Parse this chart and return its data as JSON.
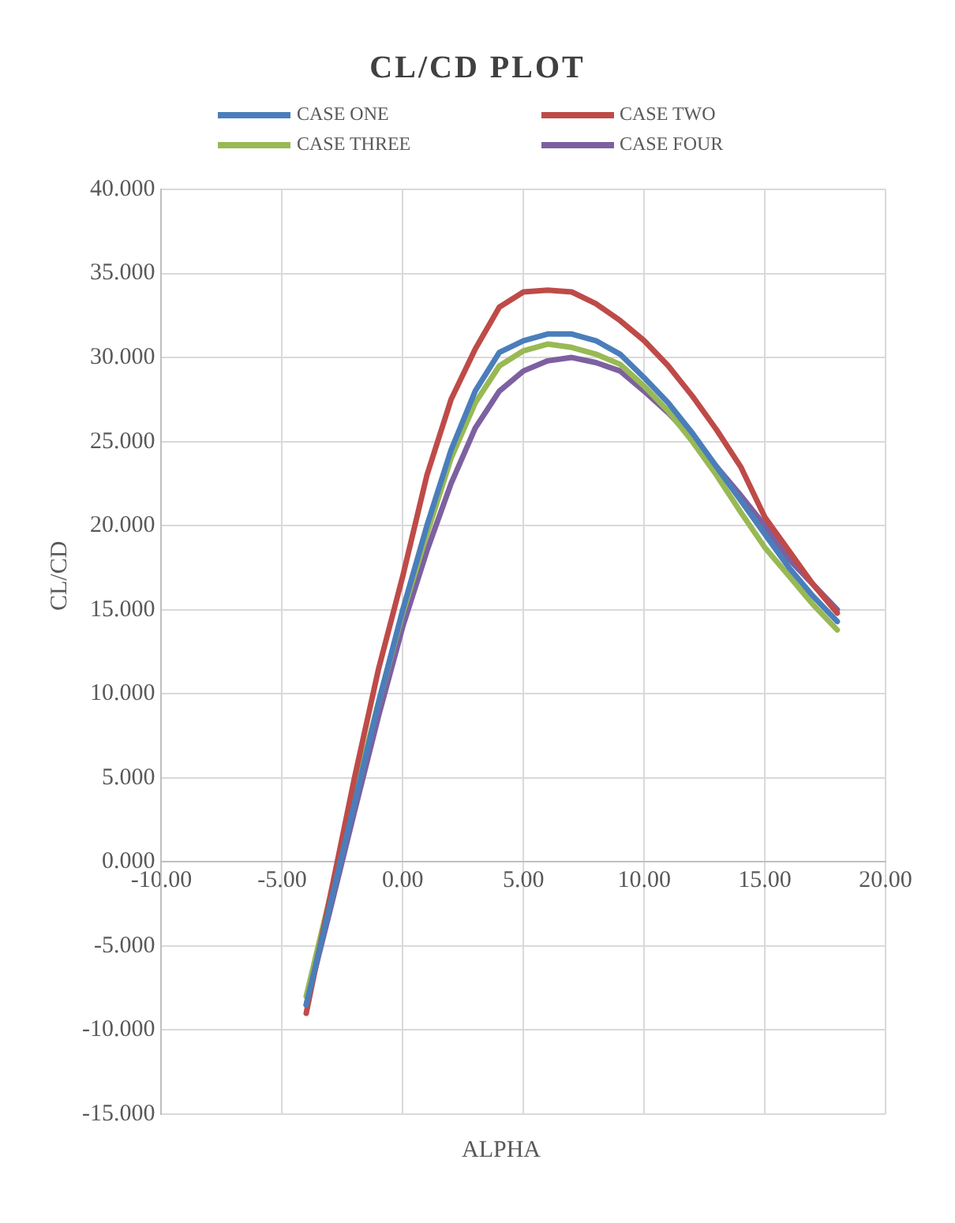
{
  "chart_data": {
    "type": "line",
    "title": "CL/CD PLOT",
    "xlabel": "ALPHA",
    "ylabel": "CL/CD",
    "x": [
      -4,
      -3,
      -2,
      -1,
      0,
      1,
      2,
      3,
      4,
      5,
      6,
      7,
      8,
      9,
      10,
      11,
      12,
      13,
      14,
      15,
      16,
      17,
      18
    ],
    "series": [
      {
        "name": "CASE ONE",
        "color": "#4a7ebb",
        "values": [
          -8.5,
          -2.5,
          3.5,
          9.5,
          15,
          20,
          24.5,
          28,
          30.3,
          31,
          31.4,
          31.4,
          31,
          30.2,
          28.8,
          27.3,
          25.5,
          23.5,
          21.5,
          19.5,
          17.5,
          15.8,
          14.3
        ]
      },
      {
        "name": "CASE TWO",
        "color": "#be4b48",
        "values": [
          -9,
          -2,
          5,
          11.5,
          17,
          23,
          27.5,
          30.5,
          33,
          33.9,
          34,
          33.9,
          33.2,
          32.2,
          31,
          29.5,
          27.7,
          25.7,
          23.5,
          20.5,
          18.5,
          16.5,
          14.8
        ]
      },
      {
        "name": "CASE THREE",
        "color": "#98b954",
        "values": [
          -8,
          -2,
          4,
          9.5,
          14.8,
          19.5,
          24,
          27.3,
          29.5,
          30.4,
          30.8,
          30.6,
          30.2,
          29.6,
          28.3,
          26.8,
          25,
          23,
          20.8,
          18.7,
          17,
          15.3,
          13.8
        ]
      },
      {
        "name": "CASE FOUR",
        "color": "#7d60a0",
        "values": [
          -8.5,
          -2.8,
          3,
          8.7,
          14,
          18.5,
          22.5,
          25.8,
          28,
          29.2,
          29.8,
          30,
          29.7,
          29.2,
          28,
          26.7,
          25.2,
          23.5,
          21.8,
          20,
          18,
          16.5,
          15
        ]
      }
    ],
    "xlim": [
      -10,
      20
    ],
    "xticks": [
      {
        "value": -10,
        "label": "-10.00"
      },
      {
        "value": -5,
        "label": "-5.00"
      },
      {
        "value": 0,
        "label": "0.00"
      },
      {
        "value": 5,
        "label": "5.00"
      },
      {
        "value": 10,
        "label": "10.00"
      },
      {
        "value": 15,
        "label": "15.00"
      },
      {
        "value": 20,
        "label": "20.00"
      }
    ],
    "ylim": [
      -15,
      40
    ],
    "yticks": [
      {
        "value": -15,
        "label": "-15.000"
      },
      {
        "value": -10,
        "label": "-10.000"
      },
      {
        "value": -5,
        "label": "-5.000"
      },
      {
        "value": 0,
        "label": "0.000"
      },
      {
        "value": 5,
        "label": "5.000"
      },
      {
        "value": 10,
        "label": "10.000"
      },
      {
        "value": 15,
        "label": "15.000"
      },
      {
        "value": 20,
        "label": "20.000"
      },
      {
        "value": 25,
        "label": "25.000"
      },
      {
        "value": 30,
        "label": "30.000"
      },
      {
        "value": 35,
        "label": "35.000"
      },
      {
        "value": 40,
        "label": "40.000"
      }
    ],
    "grid": true,
    "legend": "top",
    "marker": "none",
    "line_style": "solid"
  }
}
